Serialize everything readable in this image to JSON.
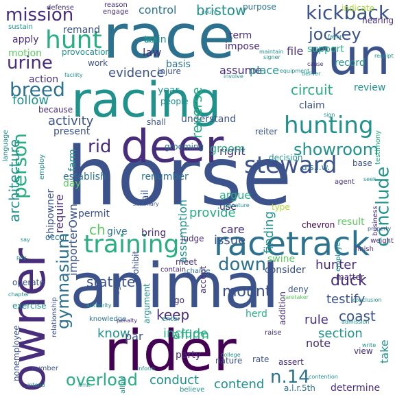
{
  "cloud": {
    "colors": {
      "purple": "#440154",
      "indigo": "#472d7b",
      "navy": "#3b528b",
      "blue": "#2c728e",
      "teal": "#21918c",
      "sea": "#28ae80",
      "green": "#5ec962",
      "lime": "#addc30",
      "yellow": "#fde725"
    },
    "words": [
      {
        "text": "horse",
        "color": "navy"
      },
      {
        "text": "animal",
        "color": "navy"
      },
      {
        "text": "race",
        "color": "blue"
      },
      {
        "text": "racing",
        "color": "teal"
      },
      {
        "text": "rider",
        "color": "purple"
      },
      {
        "text": "owner",
        "color": "indigo"
      },
      {
        "text": "deer",
        "color": "indigo"
      },
      {
        "text": "run",
        "color": "navy"
      },
      {
        "text": "racetrack",
        "color": "blue"
      },
      {
        "text": "training",
        "color": "sea"
      },
      {
        "text": "steward",
        "color": "navy"
      },
      {
        "text": "hunting",
        "color": "teal"
      },
      {
        "text": "hunt",
        "color": "sea"
      },
      {
        "text": "mission",
        "color": "indigo"
      },
      {
        "text": "kickback",
        "color": "navy"
      },
      {
        "text": "jockey",
        "color": "navy"
      },
      {
        "text": "urine",
        "color": "indigo"
      },
      {
        "text": "breed",
        "color": "blue"
      },
      {
        "text": "conclude",
        "color": "teal"
      },
      {
        "text": "person",
        "color": "sea"
      },
      {
        "text": "architecture",
        "color": "teal"
      },
      {
        "text": "down",
        "color": "blue"
      },
      {
        "text": "gymnasium",
        "color": "blue"
      },
      {
        "text": "showroom",
        "color": "teal"
      },
      {
        "text": "overload",
        "color": "sea"
      },
      {
        "text": "mount",
        "color": "navy"
      },
      {
        "text": "duck",
        "color": "indigo"
      },
      {
        "text": "n.14",
        "color": "blue"
      },
      {
        "text": "statute",
        "color": "navy"
      },
      {
        "text": "rid",
        "color": "indigo"
      },
      {
        "text": "include",
        "color": "sea"
      },
      {
        "text": "conduct",
        "color": "teal"
      },
      {
        "text": "contend",
        "color": "teal"
      },
      {
        "text": "testify",
        "color": "navy"
      },
      {
        "text": "hunter",
        "color": "indigo"
      },
      {
        "text": "coast",
        "color": "navy"
      },
      {
        "text": "section",
        "color": "teal"
      },
      {
        "text": "circuit",
        "color": "sea"
      },
      {
        "text": "bristow",
        "color": "teal"
      },
      {
        "text": "control",
        "color": "blue"
      },
      {
        "text": "evidence",
        "color": "navy"
      },
      {
        "text": "activity",
        "color": "navy"
      },
      {
        "text": "follow",
        "color": "teal"
      },
      {
        "text": "understand",
        "color": "navy"
      },
      {
        "text": "establish",
        "color": "blue"
      },
      {
        "text": "renumber",
        "color": "blue"
      },
      {
        "text": "provide",
        "color": "sea"
      },
      {
        "text": "argue",
        "color": "sea"
      },
      {
        "text": "finding",
        "color": "teal"
      },
      {
        "text": "assumption",
        "color": "teal"
      },
      {
        "text": "issue",
        "color": "navy"
      },
      {
        "text": "keep",
        "color": "indigo"
      },
      {
        "text": "affirm",
        "color": "sea"
      },
      {
        "text": "know",
        "color": "teal"
      },
      {
        "text": "rule",
        "color": "indigo"
      },
      {
        "text": "take",
        "color": "teal"
      },
      {
        "text": "note",
        "color": "indigo"
      },
      {
        "text": "determine",
        "color": "indigo"
      },
      {
        "text": "reverse",
        "color": "sea"
      },
      {
        "text": "assume",
        "color": "indigo"
      },
      {
        "text": "place",
        "color": "teal"
      },
      {
        "text": "claim",
        "color": "navy"
      },
      {
        "text": "review",
        "color": "teal"
      },
      {
        "text": "record",
        "color": "teal"
      },
      {
        "text": "support",
        "color": "sea"
      },
      {
        "text": "file",
        "color": "indigo"
      },
      {
        "text": "impose",
        "color": "indigo"
      },
      {
        "text": "term",
        "color": "indigo"
      },
      {
        "text": "law",
        "color": "indigo"
      },
      {
        "text": "basis",
        "color": "blue"
      },
      {
        "text": "train",
        "color": "teal"
      },
      {
        "text": "remand",
        "color": "navy"
      },
      {
        "text": "apply",
        "color": "indigo"
      },
      {
        "text": "motion",
        "color": "green"
      },
      {
        "text": "action",
        "color": "indigo"
      },
      {
        "text": "present",
        "color": "navy"
      },
      {
        "text": "right",
        "color": "indigo"
      },
      {
        "text": "groom",
        "color": "sea"
      },
      {
        "text": "care",
        "color": "indigo"
      },
      {
        "text": "use",
        "color": "indigo"
      },
      {
        "text": "consider",
        "color": "navy"
      },
      {
        "text": "swine",
        "color": "green"
      },
      {
        "text": "result",
        "color": "green"
      },
      {
        "text": "herd",
        "color": "sea"
      },
      {
        "text": "party",
        "color": "indigo"
      },
      {
        "text": "par",
        "color": "navy"
      },
      {
        "text": "ch",
        "color": "green"
      },
      {
        "text": "require",
        "color": "indigo"
      },
      {
        "text": "importerOwn",
        "color": "navy"
      },
      {
        "text": "shipowner",
        "color": "navy"
      },
      {
        "text": "permit",
        "color": "navy"
      },
      {
        "text": "farm",
        "color": "teal"
      },
      {
        "text": "day",
        "color": "green"
      },
      {
        "text": "give",
        "color": "blue"
      },
      {
        "text": "bring",
        "color": "indigo"
      },
      {
        "text": "fail",
        "color": "navy"
      },
      {
        "text": "year",
        "color": "teal"
      },
      {
        "text": "people",
        "color": "teal"
      },
      {
        "text": "shall",
        "color": "navy"
      },
      {
        "text": "because",
        "color": "indigo"
      },
      {
        "text": "work",
        "color": "navy"
      },
      {
        "text": "injure",
        "color": "navy"
      },
      {
        "text": "provocation",
        "color": "teal"
      },
      {
        "text": "act",
        "color": "teal"
      },
      {
        "text": "purpose",
        "color": "blue"
      },
      {
        "text": "defense",
        "color": "indigo"
      },
      {
        "text": "reason",
        "color": "indigo"
      },
      {
        "text": "engage",
        "color": "indigo"
      },
      {
        "text": "hearing",
        "color": "indigo"
      },
      {
        "text": "sustain",
        "color": "teal"
      },
      {
        "text": "grooming",
        "color": "blue"
      },
      {
        "text": "decision",
        "color": "teal"
      },
      {
        "text": "base",
        "color": "navy"
      },
      {
        "text": "agent",
        "color": "indigo"
      },
      {
        "text": "reiter",
        "color": "navy"
      },
      {
        "text": "u.s.l.w.",
        "color": "blue"
      },
      {
        "text": "chevron",
        "color": "purple"
      },
      {
        "text": "finish",
        "color": "indigo"
      },
      {
        "text": "employee",
        "color": "teal"
      },
      {
        "text": "deny",
        "color": "navy"
      },
      {
        "text": "matter",
        "color": "indigo"
      },
      {
        "text": "view",
        "color": "indigo"
      },
      {
        "text": "type",
        "color": "lime"
      },
      {
        "text": "occur",
        "color": "blue"
      },
      {
        "text": "exercise",
        "color": "teal"
      },
      {
        "text": "nonemployee",
        "color": "navy"
      },
      {
        "text": "operate",
        "color": "navy"
      },
      {
        "text": "knowledge",
        "color": "blue"
      },
      {
        "text": "agree",
        "color": "navy"
      },
      {
        "text": "argument",
        "color": "teal"
      },
      {
        "text": "prohibit",
        "color": "navy"
      },
      {
        "text": "enter",
        "color": "teal"
      },
      {
        "text": "contain",
        "color": "indigo"
      },
      {
        "text": "meet",
        "color": "indigo"
      },
      {
        "text": "charge",
        "color": "blue"
      },
      {
        "text": "judge",
        "color": "indigo"
      },
      {
        "text": "go",
        "color": "indigo"
      },
      {
        "text": "accept",
        "color": "indigo"
      },
      {
        "text": "addition",
        "color": "indigo"
      },
      {
        "text": "raise",
        "color": "indigo"
      },
      {
        "text": "rate",
        "color": "navy"
      },
      {
        "text": "assert",
        "color": "indigo"
      },
      {
        "text": "nature",
        "color": "navy"
      },
      {
        "text": "number",
        "color": "navy"
      },
      {
        "text": "allow",
        "color": "teal"
      },
      {
        "text": "penalty",
        "color": "indigo"
      },
      {
        "text": "believe",
        "color": "teal"
      },
      {
        "text": "a.l.r.5th",
        "color": "blue"
      },
      {
        "text": "language",
        "color": "teal"
      },
      {
        "text": "employ",
        "color": "teal"
      },
      {
        "text": "relationship",
        "color": "navy"
      },
      {
        "text": "testimony",
        "color": "sea"
      },
      {
        "text": "summary",
        "color": "navy"
      },
      {
        "text": "property",
        "color": "navy"
      },
      {
        "text": "business",
        "color": "indigo"
      },
      {
        "text": "weight",
        "color": "indigo"
      },
      {
        "text": "indicate",
        "color": "lime"
      },
      {
        "text": "count",
        "color": "teal"
      },
      {
        "text": "receipt",
        "color": "teal"
      },
      {
        "text": "deliver",
        "color": "teal"
      },
      {
        "text": "equipment",
        "color": "teal"
      },
      {
        "text": "signer",
        "color": "teal"
      },
      {
        "text": "involve",
        "color": "teal"
      },
      {
        "text": "signature",
        "color": "teal"
      },
      {
        "text": "authority",
        "color": "teal"
      },
      {
        "text": "caretaker",
        "color": "green"
      },
      {
        "text": "admission",
        "color": "teal"
      },
      {
        "text": "college",
        "color": "teal"
      },
      {
        "text": "contention",
        "color": "teal"
      },
      {
        "text": "conclusion",
        "color": "teal"
      },
      {
        "text": "limit",
        "color": "teal"
      },
      {
        "text": "intend",
        "color": "teal"
      },
      {
        "text": "chapter",
        "color": "teal"
      },
      {
        "text": "facility",
        "color": "teal"
      },
      {
        "text": "maintain",
        "color": "teal"
      },
      {
        "text": "cause",
        "color": "indigo"
      },
      {
        "text": "pay",
        "color": "teal"
      },
      {
        "text": "say",
        "color": "teal"
      },
      {
        "text": "favor",
        "color": "teal"
      },
      {
        "text": "sign",
        "color": "teal"
      },
      {
        "text": "write",
        "color": "teal"
      },
      {
        "text": "inform",
        "color": "teal"
      },
      {
        "text": "seek",
        "color": "teal"
      },
      {
        "text": "court",
        "color": "teal"
      }
    ]
  }
}
